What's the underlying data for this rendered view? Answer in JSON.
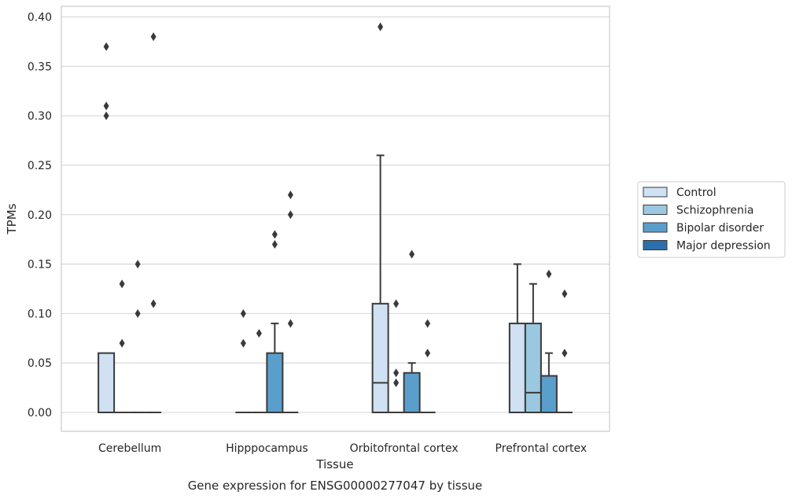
{
  "chart_data": {
    "type": "box",
    "title": "",
    "caption": "Gene expression for ENSG00000277047 by tissue",
    "xlabel": "Tissue",
    "ylabel": "TPMs",
    "ylim": [
      -0.018,
      0.41
    ],
    "yticks": [
      0.0,
      0.05,
      0.1,
      0.15,
      0.2,
      0.25,
      0.3,
      0.35,
      0.4
    ],
    "ytick_labels": [
      "0.00",
      "0.05",
      "0.10",
      "0.15",
      "0.20",
      "0.25",
      "0.30",
      "0.35",
      "0.40"
    ],
    "grid": true,
    "legend_position": "right",
    "categories": [
      "Cerebellum",
      "Hipppocampus",
      "Orbitofrontal cortex",
      "Prefrontal cortex"
    ],
    "series": [
      {
        "name": "Control",
        "color": "#cfe1f2",
        "boxes": [
          {
            "q1": 0.0,
            "median": 0.0,
            "q3": 0.06,
            "whisker_low": 0.0,
            "whisker_high": 0.06,
            "outliers": [
              0.37,
              0.31,
              0.3
            ]
          },
          {
            "q1": 0.0,
            "median": 0.0,
            "q3": 0.0,
            "whisker_low": 0.0,
            "whisker_high": 0.0,
            "outliers": [
              0.1,
              0.07
            ]
          },
          {
            "q1": 0.0,
            "median": 0.03,
            "q3": 0.11,
            "whisker_low": 0.0,
            "whisker_high": 0.26,
            "outliers": [
              0.39
            ]
          },
          {
            "q1": 0.0,
            "median": 0.0,
            "q3": 0.09,
            "whisker_low": 0.0,
            "whisker_high": 0.15,
            "outliers": []
          }
        ]
      },
      {
        "name": "Schizophrenia",
        "color": "#9ac8e0",
        "boxes": [
          {
            "q1": 0.0,
            "median": 0.0,
            "q3": 0.0,
            "whisker_low": 0.0,
            "whisker_high": 0.0,
            "outliers": [
              0.13,
              0.07
            ]
          },
          {
            "q1": 0.0,
            "median": 0.0,
            "q3": 0.0,
            "whisker_low": 0.0,
            "whisker_high": 0.0,
            "outliers": [
              0.08
            ]
          },
          {
            "q1": 0.0,
            "median": 0.0,
            "q3": 0.0,
            "whisker_low": 0.0,
            "whisker_high": 0.0,
            "outliers": [
              0.11,
              0.04,
              0.03
            ]
          },
          {
            "q1": 0.0,
            "median": 0.02,
            "q3": 0.09,
            "whisker_low": 0.0,
            "whisker_high": 0.13,
            "outliers": []
          }
        ]
      },
      {
        "name": "Bipolar disorder",
        "color": "#5a9fcc",
        "boxes": [
          {
            "q1": 0.0,
            "median": 0.0,
            "q3": 0.0,
            "whisker_low": 0.0,
            "whisker_high": 0.0,
            "outliers": [
              0.15,
              0.1
            ]
          },
          {
            "q1": 0.0,
            "median": 0.0,
            "q3": 0.06,
            "whisker_low": 0.0,
            "whisker_high": 0.09,
            "outliers": [
              0.18,
              0.17
            ]
          },
          {
            "q1": 0.0,
            "median": 0.0,
            "q3": 0.04,
            "whisker_low": 0.0,
            "whisker_high": 0.05,
            "outliers": [
              0.16
            ]
          },
          {
            "q1": 0.0,
            "median": 0.0,
            "q3": 0.037,
            "whisker_low": 0.0,
            "whisker_high": 0.06,
            "outliers": [
              0.14
            ]
          }
        ]
      },
      {
        "name": "Major depression",
        "color": "#2c6fac",
        "boxes": [
          {
            "q1": 0.0,
            "median": 0.0,
            "q3": 0.0,
            "whisker_low": 0.0,
            "whisker_high": 0.0,
            "outliers": [
              0.38,
              0.11
            ]
          },
          {
            "q1": 0.0,
            "median": 0.0,
            "q3": 0.0,
            "whisker_low": 0.0,
            "whisker_high": 0.0,
            "outliers": [
              0.22,
              0.2,
              0.09
            ]
          },
          {
            "q1": 0.0,
            "median": 0.0,
            "q3": 0.0,
            "whisker_low": 0.0,
            "whisker_high": 0.0,
            "outliers": [
              0.09,
              0.06
            ]
          },
          {
            "q1": 0.0,
            "median": 0.0,
            "q3": 0.0,
            "whisker_low": 0.0,
            "whisker_high": 0.0,
            "outliers": [
              0.12,
              0.06
            ]
          }
        ]
      }
    ]
  }
}
